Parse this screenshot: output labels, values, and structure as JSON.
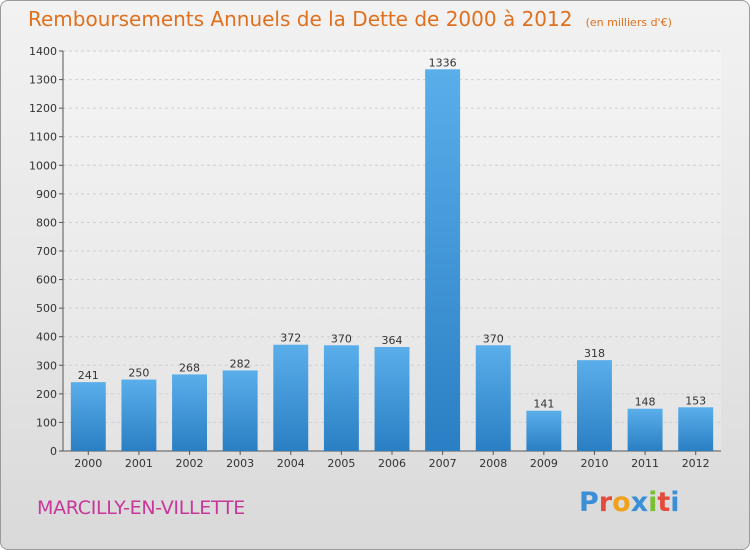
{
  "header": {
    "title": "Remboursements Annuels de la Dette de 2000 à 2012",
    "subtitle": "(en milliers d'€)"
  },
  "footer": {
    "place": "MARCILLY-EN-VILLETTE",
    "logo_text": "Proxiti",
    "logo_colors": [
      "#3a8fd6",
      "#e54b3c",
      "#f0a21b",
      "#3a8fd6",
      "#7bbf32",
      "#e54b3c",
      "#3a8fd6"
    ]
  },
  "chart_data": {
    "type": "bar",
    "title": "Remboursements Annuels de la Dette de 2000 à 2012",
    "subtitle": "(en milliers d'€)",
    "categories": [
      "2000",
      "2001",
      "2002",
      "2003",
      "2004",
      "2005",
      "2006",
      "2007",
      "2008",
      "2009",
      "2010",
      "2011",
      "2012"
    ],
    "values": [
      241,
      250,
      268,
      282,
      372,
      370,
      364,
      1336,
      370,
      141,
      318,
      148,
      153
    ],
    "ylim": [
      0,
      1400
    ],
    "yticks": [
      0,
      100,
      200,
      300,
      400,
      500,
      600,
      700,
      800,
      900,
      1000,
      1100,
      1200,
      1300,
      1400
    ],
    "grid": true,
    "bar_color": "#3d93d8"
  }
}
